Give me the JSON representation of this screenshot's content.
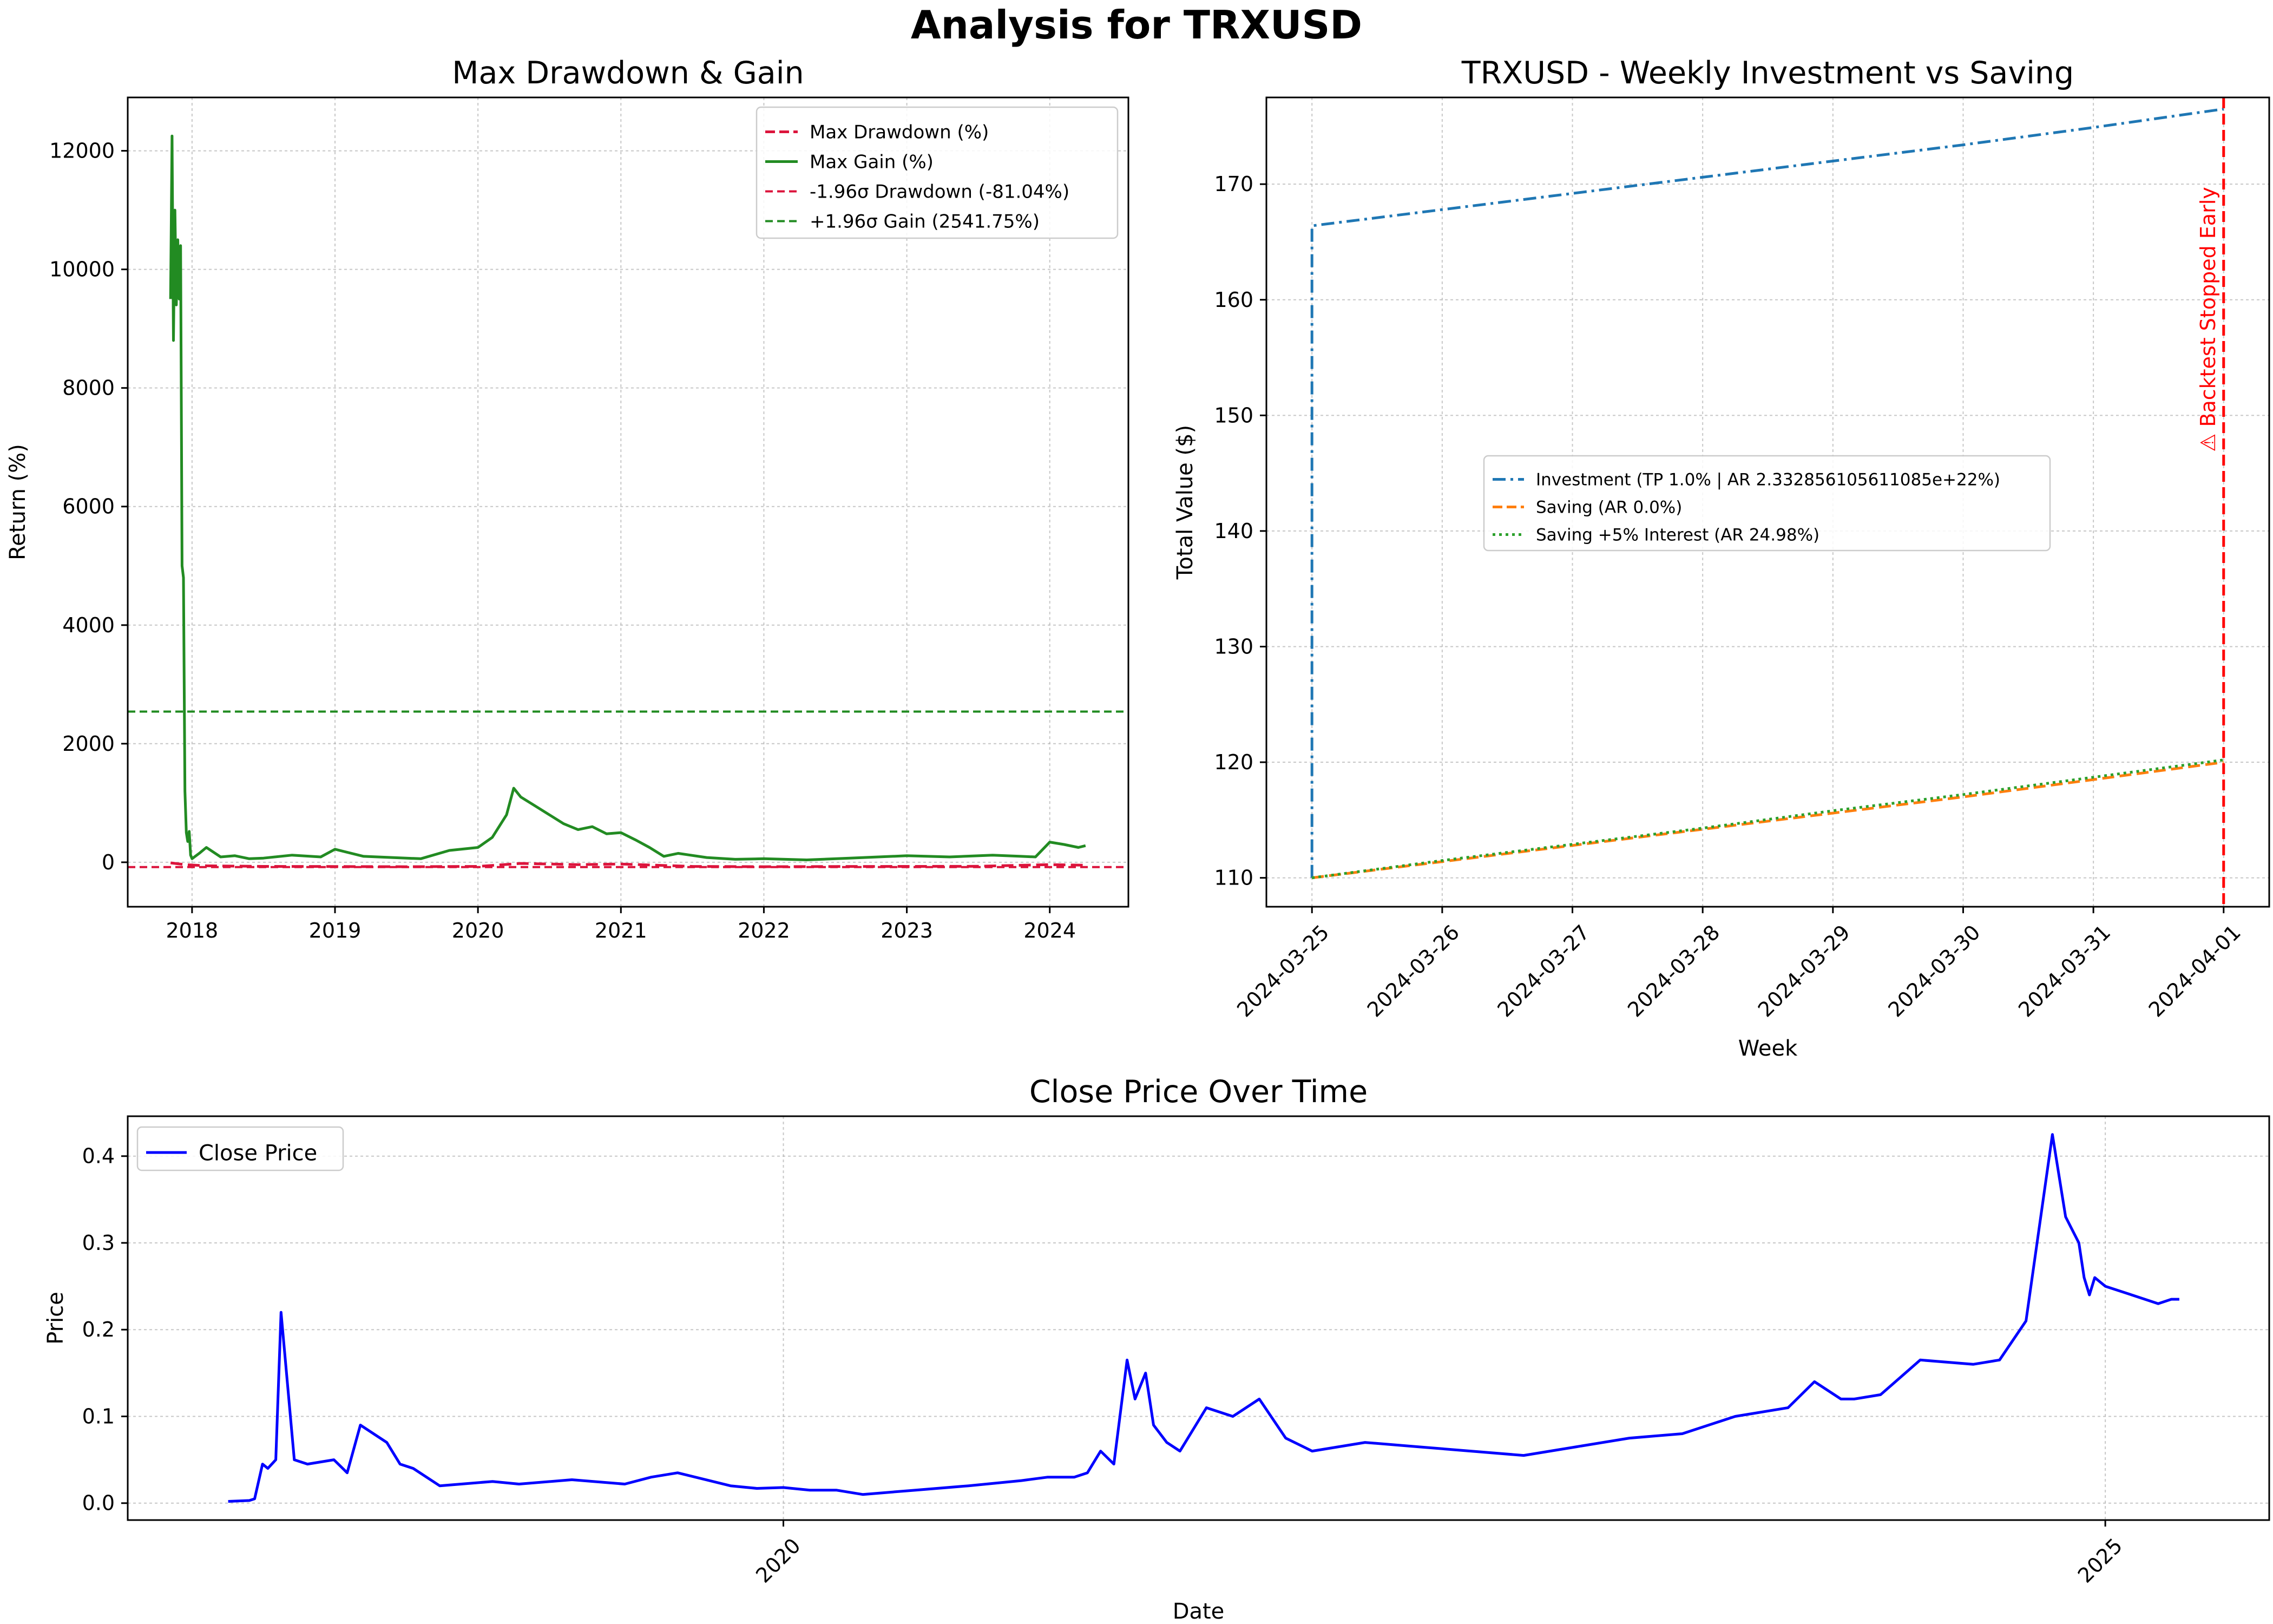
{
  "figure": {
    "title": "Analysis for TRXUSD"
  },
  "chart_data": [
    {
      "id": "drawdown",
      "type": "line",
      "title": "Max Drawdown & Gain",
      "xlabel": "",
      "ylabel": "Return (%)",
      "xlim": [
        2017.55,
        2024.55
      ],
      "ylim": [
        -750,
        12900
      ],
      "x_ticks": [
        2018,
        2019,
        2020,
        2021,
        2022,
        2023,
        2024
      ],
      "x_tick_labels": [
        "2018",
        "2019",
        "2020",
        "2021",
        "2022",
        "2023",
        "2024"
      ],
      "y_ticks": [
        0,
        2000,
        4000,
        6000,
        8000,
        10000,
        12000
      ],
      "y_tick_labels": [
        "0",
        "2000",
        "4000",
        "6000",
        "8000",
        "10000",
        "12000"
      ],
      "grid": true,
      "legend_position": "top-right",
      "series": [
        {
          "name": "Max Drawdown (%)",
          "color": "#dc143c",
          "style": "dashed",
          "x": [
            2017.85,
            2017.95,
            2018.1,
            2018.5,
            2019.0,
            2019.5,
            2020.0,
            2020.3,
            2020.7,
            2021.0,
            2021.5,
            2022.0,
            2022.5,
            2023.0,
            2023.5,
            2024.0,
            2024.25
          ],
          "y": [
            -10,
            -40,
            -60,
            -70,
            -72,
            -75,
            -70,
            -20,
            -40,
            -30,
            -70,
            -75,
            -72,
            -70,
            -68,
            -40,
            -50
          ]
        },
        {
          "name": "Max Gain (%)",
          "color": "#228b22",
          "style": "solid",
          "x": [
            2017.85,
            2017.86,
            2017.87,
            2017.88,
            2017.89,
            2017.9,
            2017.91,
            2017.92,
            2017.93,
            2017.94,
            2017.95,
            2017.96,
            2017.97,
            2017.98,
            2017.99,
            2018.0,
            2018.05,
            2018.1,
            2018.2,
            2018.3,
            2018.4,
            2018.5,
            2018.7,
            2018.9,
            2019.0,
            2019.2,
            2019.4,
            2019.6,
            2019.8,
            2020.0,
            2020.1,
            2020.2,
            2020.25,
            2020.3,
            2020.4,
            2020.5,
            2020.6,
            2020.7,
            2020.8,
            2020.9,
            2021.0,
            2021.1,
            2021.2,
            2021.3,
            2021.4,
            2021.6,
            2021.8,
            2022.0,
            2022.3,
            2022.6,
            2023.0,
            2023.3,
            2023.6,
            2023.8,
            2023.9,
            2024.0,
            2024.1,
            2024.2,
            2024.25
          ],
          "y": [
            9500,
            12250,
            8800,
            11000,
            9400,
            10500,
            9500,
            10400,
            5000,
            4800,
            1200,
            500,
            350,
            520,
            120,
            60,
            150,
            250,
            90,
            110,
            60,
            70,
            120,
            90,
            220,
            100,
            80,
            60,
            200,
            250,
            420,
            800,
            1250,
            1100,
            950,
            800,
            650,
            550,
            600,
            480,
            500,
            380,
            250,
            100,
            150,
            80,
            50,
            60,
            40,
            70,
            110,
            90,
            120,
            100,
            90,
            340,
            300,
            250,
            280
          ]
        },
        {
          "name": "-1.96σ Drawdown (-81.04%)",
          "color": "#dc143c",
          "style": "dashed-thin",
          "hline": -81.04
        },
        {
          "name": "+1.96σ Gain (2541.75%)",
          "color": "#228b22",
          "style": "dashed-thin",
          "hline": 2541.75
        }
      ]
    },
    {
      "id": "weekly",
      "type": "line",
      "title": "TRXUSD - Weekly Investment vs Saving",
      "xlabel": "Week",
      "ylabel": "Total Value ($)",
      "xlim": [
        -0.35,
        7.35
      ],
      "ylim": [
        107.5,
        177.5
      ],
      "x_ticks": [
        0,
        1,
        2,
        3,
        4,
        5,
        6,
        7
      ],
      "x_tick_labels": [
        "2024-03-25",
        "2024-03-26",
        "2024-03-27",
        "2024-03-28",
        "2024-03-29",
        "2024-03-30",
        "2024-03-31",
        "2024-04-01"
      ],
      "y_ticks": [
        110,
        120,
        130,
        140,
        150,
        160,
        170
      ],
      "y_tick_labels": [
        "110",
        "120",
        "130",
        "140",
        "150",
        "160",
        "170"
      ],
      "grid": true,
      "legend_position": "center",
      "series": [
        {
          "name": "Investment (TP 1.0% | AR 2.332856105611085e+22%)",
          "color": "#1f77b4",
          "style": "dashdot",
          "x": [
            0,
            0,
            1,
            2,
            3,
            4,
            5,
            6,
            7
          ],
          "y": [
            110,
            166.4,
            167.8,
            169.2,
            170.6,
            172.0,
            173.4,
            174.9,
            176.5
          ]
        },
        {
          "name": "Saving (AR 0.0%)",
          "color": "#ff7f0e",
          "style": "dashed",
          "x": [
            0,
            1,
            2,
            3,
            4,
            5,
            6,
            7
          ],
          "y": [
            110,
            111.4,
            112.8,
            114.2,
            115.6,
            117.0,
            118.5,
            120.0
          ]
        },
        {
          "name": "Saving +5% Interest (AR 24.98%)",
          "color": "#2ca02c",
          "style": "dotted",
          "x": [
            0,
            1,
            2,
            3,
            4,
            5,
            6,
            7
          ],
          "y": [
            110,
            111.5,
            112.9,
            114.3,
            115.8,
            117.2,
            118.7,
            120.2
          ]
        }
      ],
      "vline": {
        "x": 7,
        "color": "#ff0000",
        "label": "⚠ Backtest Stopped Early"
      }
    },
    {
      "id": "close",
      "type": "line",
      "title": "Close Price Over Time",
      "xlabel": "Date",
      "ylabel": "Price",
      "xlim": [
        2017.52,
        2025.62
      ],
      "ylim": [
        -0.0195,
        0.446
      ],
      "x_ticks": [
        2020,
        2025
      ],
      "x_tick_labels": [
        "2020",
        "2025"
      ],
      "y_ticks": [
        0.0,
        0.1,
        0.2,
        0.3,
        0.4
      ],
      "y_tick_labels": [
        "0.0",
        "0.1",
        "0.2",
        "0.3",
        "0.4"
      ],
      "grid": true,
      "legend_position": "top-left",
      "series": [
        {
          "name": "Close Price",
          "color": "#0000ff",
          "style": "solid",
          "x": [
            2017.9,
            2017.98,
            2018.0,
            2018.03,
            2018.05,
            2018.08,
            2018.1,
            2018.15,
            2018.2,
            2018.3,
            2018.35,
            2018.4,
            2018.5,
            2018.55,
            2018.6,
            2018.7,
            2018.9,
            2019.0,
            2019.2,
            2019.4,
            2019.5,
            2019.6,
            2019.8,
            2019.9,
            2020.0,
            2020.1,
            2020.2,
            2020.3,
            2020.5,
            2020.7,
            2020.9,
            2021.0,
            2021.1,
            2021.15,
            2021.2,
            2021.25,
            2021.3,
            2021.33,
            2021.37,
            2021.4,
            2021.45,
            2021.5,
            2021.6,
            2021.7,
            2021.8,
            2021.9,
            2022.0,
            2022.2,
            2022.4,
            2022.6,
            2022.8,
            2023.0,
            2023.2,
            2023.4,
            2023.6,
            2023.8,
            2023.9,
            2024.0,
            2024.05,
            2024.15,
            2024.3,
            2024.5,
            2024.6,
            2024.7,
            2024.8,
            2024.85,
            2024.9,
            2024.92,
            2024.94,
            2024.96,
            2025.0,
            2025.1,
            2025.2,
            2025.25,
            2025.28
          ],
          "y": [
            0.002,
            0.003,
            0.005,
            0.045,
            0.04,
            0.05,
            0.22,
            0.05,
            0.045,
            0.05,
            0.035,
            0.09,
            0.07,
            0.045,
            0.04,
            0.02,
            0.025,
            0.022,
            0.027,
            0.022,
            0.03,
            0.035,
            0.02,
            0.017,
            0.018,
            0.015,
            0.015,
            0.01,
            0.015,
            0.02,
            0.026,
            0.03,
            0.03,
            0.035,
            0.06,
            0.045,
            0.165,
            0.12,
            0.15,
            0.09,
            0.07,
            0.06,
            0.11,
            0.1,
            0.12,
            0.075,
            0.06,
            0.07,
            0.065,
            0.06,
            0.055,
            0.065,
            0.075,
            0.08,
            0.1,
            0.11,
            0.14,
            0.12,
            0.12,
            0.125,
            0.165,
            0.16,
            0.165,
            0.21,
            0.425,
            0.33,
            0.3,
            0.26,
            0.24,
            0.26,
            0.25,
            0.24,
            0.23,
            0.235,
            0.235
          ]
        }
      ]
    }
  ]
}
